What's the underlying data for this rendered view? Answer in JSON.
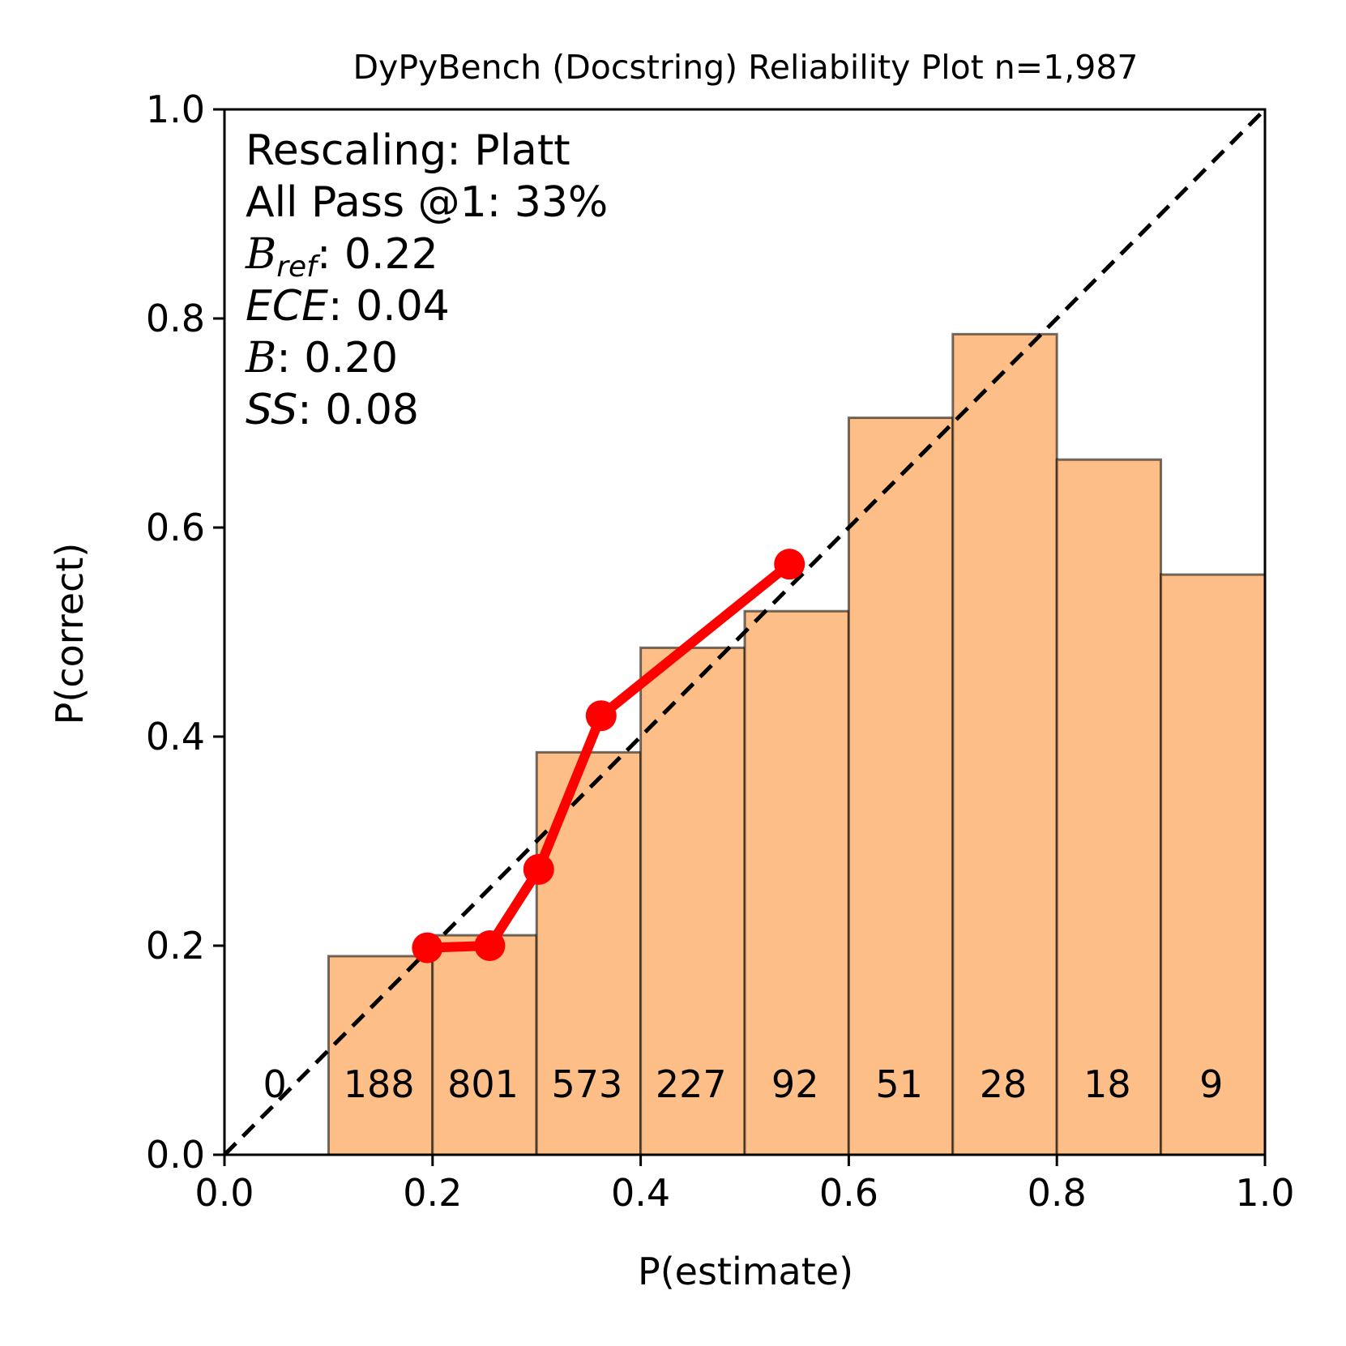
{
  "chart_data": {
    "type": "bar",
    "title": "DyPyBench (Docstring) Reliability Plot n=1,987",
    "xlabel": "P(estimate)",
    "ylabel": "P(correct)",
    "xlim": [
      0.0,
      1.0
    ],
    "ylim": [
      0.0,
      1.0
    ],
    "xticks": [
      "0.0",
      "0.2",
      "0.4",
      "0.6",
      "0.8",
      "1.0"
    ],
    "yticks": [
      "0.0",
      "0.2",
      "0.4",
      "0.6",
      "0.8",
      "1.0"
    ],
    "grid": false,
    "bins": {
      "edges": [
        0.0,
        0.1,
        0.2,
        0.3,
        0.4,
        0.5,
        0.6,
        0.7,
        0.8,
        0.9,
        1.0
      ],
      "values": [
        0.0,
        0.19,
        0.21,
        0.385,
        0.485,
        0.52,
        0.705,
        0.785,
        0.665,
        0.555
      ],
      "counts": [
        "0",
        "188",
        "801",
        "573",
        "227",
        "92",
        "51",
        "28",
        "18",
        "9"
      ],
      "color": "#fdbf87"
    },
    "calibration_line": {
      "x": [
        0.195,
        0.255,
        0.302,
        0.362,
        0.543
      ],
      "y": [
        0.198,
        0.2,
        0.273,
        0.42,
        0.565
      ],
      "color": "#ff0000"
    },
    "diagonal": {
      "color": "#000000",
      "style": "dashed"
    },
    "annotations": {
      "rescaling": "Rescaling: Platt",
      "pass_at_1": "All Pass @1: 33%",
      "b_ref_symbol": "B",
      "b_ref_sub": "ref",
      "b_ref_value": ": 0.22",
      "ece_label": "ECE",
      "ece_value": ": 0.04",
      "b_symbol": "B",
      "b_value": ": 0.20",
      "ss_label": "SS",
      "ss_value": ": 0.08"
    }
  }
}
